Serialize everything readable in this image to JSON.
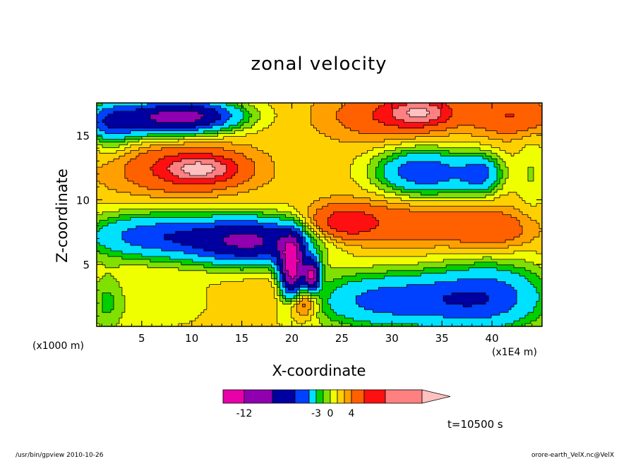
{
  "chart_data": {
    "type": "heatmap",
    "title": "zonal velocity",
    "xlabel": "X-coordinate",
    "ylabel": "Z-coordinate",
    "x_units_label_left": "(x1000 m)",
    "x_units_label_right": "(x1E4 m)",
    "xlim": [
      0.5,
      45
    ],
    "ylim": [
      0.2,
      17.5
    ],
    "xticks": [
      5,
      10,
      15,
      20,
      25,
      30,
      35,
      40
    ],
    "yticks": [
      5,
      10,
      15
    ],
    "time_label": "t=10500 s",
    "colorbar": {
      "colors": [
        "#e800a8",
        "#9000b0",
        "#0000a0",
        "#0040ff",
        "#00e0ff",
        "#00d000",
        "#80e000",
        "#f0ff00",
        "#ffd000",
        "#ffa000",
        "#ff6000",
        "#ff1010",
        "#ff8080",
        "#ffc0c0"
      ],
      "tick_labels": [
        "-12",
        "-3",
        "0",
        "4"
      ],
      "tick_slots": [
        1,
        5,
        7,
        10
      ]
    },
    "regions": [
      {
        "x": 4,
        "z": 16.2,
        "u": -6,
        "rx": 6,
        "rz": 1.4
      },
      {
        "x": 10,
        "z": 16.5,
        "u": -9,
        "rx": 5,
        "rz": 1.2
      },
      {
        "x": 2,
        "z": 15.5,
        "u": -2,
        "rx": 2,
        "rz": 2
      },
      {
        "x": 9,
        "z": 12.4,
        "u": 4,
        "rx": 6.5,
        "rz": 2
      },
      {
        "x": 11,
        "z": 12.4,
        "u": 6,
        "rx": 3.5,
        "rz": 1
      },
      {
        "x": 6,
        "z": 7.2,
        "u": -6,
        "rx": 7,
        "rz": 1.8
      },
      {
        "x": 16,
        "z": 6.8,
        "u": -10,
        "rx": 6,
        "rz": 1.8
      },
      {
        "x": 1.5,
        "z": 2,
        "u": -2,
        "rx": 1.8,
        "rz": 2.5
      },
      {
        "x": 7,
        "z": 2,
        "u": -0.5,
        "rx": 5,
        "rz": 2.2
      },
      {
        "x": 19,
        "z": 2.8,
        "u": 2,
        "rx": 4,
        "rz": 1.8
      },
      {
        "x": 21,
        "z": 2,
        "u": 5,
        "rx": 1.5,
        "rz": 1.2
      },
      {
        "x": 20,
        "z": 4.7,
        "u": -14,
        "rx": 1.2,
        "rz": 2.3
      },
      {
        "x": 22,
        "z": 4.2,
        "u": -12,
        "rx": 0.8,
        "rz": 1.2
      },
      {
        "x": 25,
        "z": 8.2,
        "u": 5,
        "rx": 3.5,
        "rz": 1.3
      },
      {
        "x": 32,
        "z": 8.2,
        "u": 3,
        "rx": 8,
        "rz": 1.8
      },
      {
        "x": 40,
        "z": 7.6,
        "u": 3,
        "rx": 4,
        "rz": 1.5
      },
      {
        "x": 30,
        "z": 2.2,
        "u": -6,
        "rx": 9,
        "rz": 2.2
      },
      {
        "x": 40,
        "z": 2.5,
        "u": -5,
        "rx": 6,
        "rz": 2.8
      },
      {
        "x": 32,
        "z": 12.2,
        "u": -5,
        "rx": 4,
        "rz": 1.8
      },
      {
        "x": 36,
        "z": 12,
        "u": -3,
        "rx": 4,
        "rz": 1.8
      },
      {
        "x": 39,
        "z": 12,
        "u": -4,
        "rx": 2,
        "rz": 1.5
      },
      {
        "x": 30,
        "z": 16.5,
        "u": 4,
        "rx": 6,
        "rz": 1.8
      },
      {
        "x": 33,
        "z": 16.8,
        "u": 6,
        "rx": 3,
        "rz": 1
      },
      {
        "x": 42,
        "z": 16.5,
        "u": 4,
        "rx": 4,
        "rz": 1.5
      },
      {
        "x": 24,
        "z": 14,
        "u": 0.5,
        "rx": 4,
        "rz": 4
      },
      {
        "x": 44,
        "z": 12,
        "u": -1,
        "rx": 1.5,
        "rz": 3
      }
    ]
  },
  "footer": {
    "left": "/usr/bin/gpview   2010-10-26",
    "right": "orore-earth_VelX.nc@VelX"
  }
}
